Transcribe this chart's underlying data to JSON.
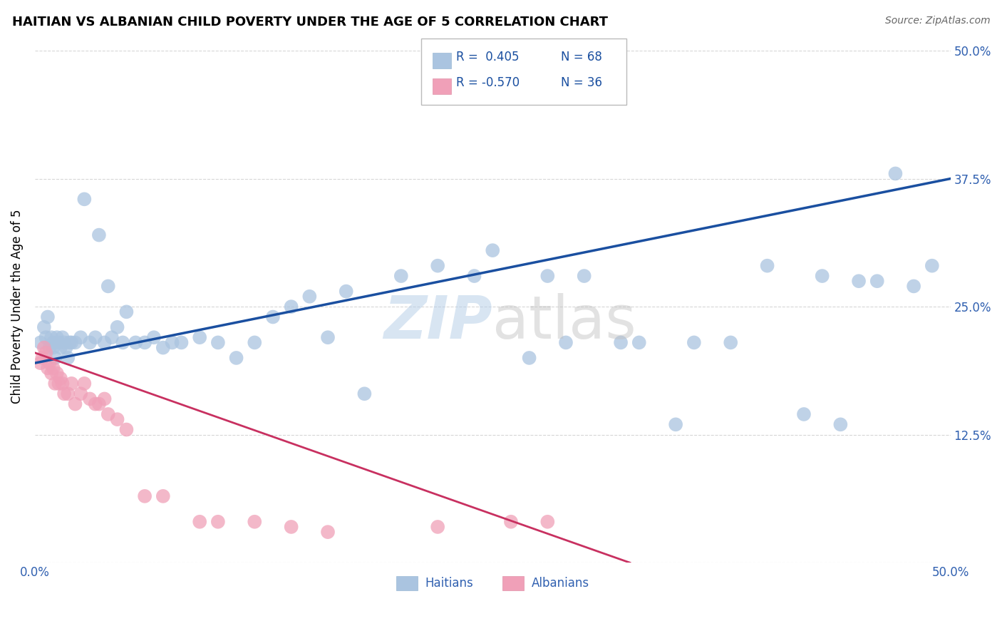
{
  "title": "HAITIAN VS ALBANIAN CHILD POVERTY UNDER THE AGE OF 5 CORRELATION CHART",
  "source": "Source: ZipAtlas.com",
  "ylabel": "Child Poverty Under the Age of 5",
  "xmin": 0.0,
  "xmax": 0.5,
  "ymin": 0.0,
  "ymax": 0.5,
  "blue_color": "#aac4e0",
  "pink_color": "#f0a0b8",
  "blue_line_color": "#1a4fa0",
  "pink_line_color": "#c83060",
  "blue_line_x0": 0.0,
  "blue_line_y0": 0.195,
  "blue_line_x1": 0.5,
  "blue_line_y1": 0.375,
  "pink_line_x0": 0.0,
  "pink_line_y0": 0.205,
  "pink_line_x1": 0.325,
  "pink_line_y1": 0.0,
  "haitians_x": [
    0.003,
    0.005,
    0.006,
    0.007,
    0.008,
    0.009,
    0.01,
    0.01,
    0.011,
    0.012,
    0.013,
    0.014,
    0.015,
    0.016,
    0.017,
    0.018,
    0.019,
    0.02,
    0.022,
    0.025,
    0.027,
    0.03,
    0.033,
    0.035,
    0.038,
    0.04,
    0.042,
    0.045,
    0.048,
    0.05,
    0.055,
    0.06,
    0.065,
    0.07,
    0.075,
    0.08,
    0.09,
    0.1,
    0.11,
    0.12,
    0.13,
    0.14,
    0.15,
    0.16,
    0.17,
    0.18,
    0.2,
    0.22,
    0.24,
    0.25,
    0.27,
    0.28,
    0.29,
    0.3,
    0.32,
    0.33,
    0.35,
    0.36,
    0.38,
    0.4,
    0.42,
    0.43,
    0.44,
    0.45,
    0.46,
    0.47,
    0.48,
    0.49
  ],
  "haitians_y": [
    0.215,
    0.23,
    0.22,
    0.24,
    0.21,
    0.22,
    0.21,
    0.215,
    0.2,
    0.22,
    0.215,
    0.21,
    0.22,
    0.215,
    0.21,
    0.2,
    0.215,
    0.215,
    0.215,
    0.22,
    0.355,
    0.215,
    0.22,
    0.32,
    0.215,
    0.27,
    0.22,
    0.23,
    0.215,
    0.245,
    0.215,
    0.215,
    0.22,
    0.21,
    0.215,
    0.215,
    0.22,
    0.215,
    0.2,
    0.215,
    0.24,
    0.25,
    0.26,
    0.22,
    0.265,
    0.165,
    0.28,
    0.29,
    0.28,
    0.305,
    0.2,
    0.28,
    0.215,
    0.28,
    0.215,
    0.215,
    0.135,
    0.215,
    0.215,
    0.29,
    0.145,
    0.28,
    0.135,
    0.275,
    0.275,
    0.38,
    0.27,
    0.29
  ],
  "albanians_x": [
    0.003,
    0.004,
    0.005,
    0.006,
    0.007,
    0.008,
    0.009,
    0.01,
    0.011,
    0.012,
    0.013,
    0.014,
    0.015,
    0.016,
    0.018,
    0.02,
    0.022,
    0.025,
    0.027,
    0.03,
    0.033,
    0.035,
    0.038,
    0.04,
    0.045,
    0.05,
    0.06,
    0.07,
    0.09,
    0.1,
    0.12,
    0.14,
    0.16,
    0.22,
    0.26,
    0.28
  ],
  "albanians_y": [
    0.195,
    0.2,
    0.21,
    0.205,
    0.19,
    0.195,
    0.185,
    0.19,
    0.175,
    0.185,
    0.175,
    0.18,
    0.175,
    0.165,
    0.165,
    0.175,
    0.155,
    0.165,
    0.175,
    0.16,
    0.155,
    0.155,
    0.16,
    0.145,
    0.14,
    0.13,
    0.065,
    0.065,
    0.04,
    0.04,
    0.04,
    0.035,
    0.03,
    0.035,
    0.04,
    0.04
  ]
}
